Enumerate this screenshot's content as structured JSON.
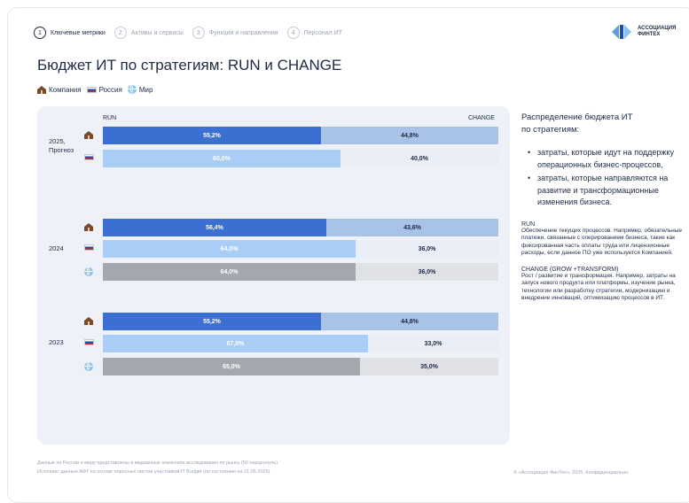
{
  "steps": [
    {
      "num": "1",
      "label": "Ключевые метрики",
      "active": true
    },
    {
      "num": "2",
      "label": "Активы и сервисы",
      "active": false
    },
    {
      "num": "3",
      "label": "Функции и направления",
      "active": false
    },
    {
      "num": "4",
      "label": "Персонал ИТ",
      "active": false
    }
  ],
  "logo": {
    "line1": "АССОЦИАЦИЯ",
    "line2": "ФИНТЕХ"
  },
  "title": "Бюджет ИТ по стратегиям: RUN и CHANGE",
  "legend": {
    "company": "Компания",
    "russia": "Россия",
    "world": "Мир"
  },
  "chart_data": {
    "type": "bar",
    "orientation": "horizontal-stacked-100",
    "run_label": "RUN",
    "change_label": "CHANGE",
    "groups": [
      {
        "year": "2025, Прогноз",
        "rows": [
          {
            "entity": "Компания",
            "run": 55.2,
            "change": 44.8,
            "run_text": "55,2%",
            "change_text": "44,8%"
          },
          {
            "entity": "Россия",
            "run": 60.0,
            "change": 40.0,
            "run_text": "60,0%",
            "change_text": "40,0%"
          }
        ]
      },
      {
        "year": "2024",
        "rows": [
          {
            "entity": "Компания",
            "run": 56.4,
            "change": 43.6,
            "run_text": "56,4%",
            "change_text": "43,6%"
          },
          {
            "entity": "Россия",
            "run": 64.0,
            "change": 36.0,
            "run_text": "64,0%",
            "change_text": "36,0%"
          },
          {
            "entity": "Мир",
            "run": 64.0,
            "change": 36.0,
            "run_text": "64,0%",
            "change_text": "36,0%"
          }
        ]
      },
      {
        "year": "2023",
        "rows": [
          {
            "entity": "Компания",
            "run": 55.2,
            "change": 44.8,
            "run_text": "55,2%",
            "change_text": "44,8%"
          },
          {
            "entity": "Россия",
            "run": 67.0,
            "change": 33.0,
            "run_text": "67,0%",
            "change_text": "33,0%"
          },
          {
            "entity": "Мир",
            "run": 65.0,
            "change": 35.0,
            "run_text": "65,0%",
            "change_text": "35,0%"
          }
        ]
      }
    ],
    "colors": {
      "Компания": {
        "run": "#3b6fd1",
        "change": "#a9c2e8"
      },
      "Россия": {
        "run": "#a9cdf5",
        "change": "#e9eef7"
      },
      "Мир": {
        "run": "#a3a7ae",
        "change": "#dfe1e5"
      }
    }
  },
  "side": {
    "title_line1": "Распределение бюджета ИТ",
    "title_line2": "по стратегиям:",
    "bullet1": "затраты, которые идут на поддержку операционных бизнес-процессов,",
    "bullet2": "затраты, которые направляются на развитие и трансформационные изменения бизнеса.",
    "run_heading": "RUN",
    "run_text": "Обеспечение текущих процессов. Например, обязательные платежи, связанные с оперированием бизнеса, такие как фиксированная часть оплаты труда или лицензионные расходы, если данное ПО уже используется Компанией.",
    "change_heading": "CHANGE (GROW +TRANSFORM)",
    "change_text": "Рост / развитие и трансформация. Например, затраты на запуск нового продукта или платформы, изучение рынка, технологии или разработку стратегии, модернизацию и внедрение инноваций, оптимизацию процессов в ИТ."
  },
  "footer": {
    "note1": "Данные по России и миру представлены в медианных значениях исследования по рынку (50 перцентиль).",
    "note2": "Источник: данные АФТ на основе опросных листов участников IT Budget (по состоянию на 21.05.2025).",
    "copyright": "© «Ассоциация ФинТех», 2025. Конфиденциально."
  }
}
